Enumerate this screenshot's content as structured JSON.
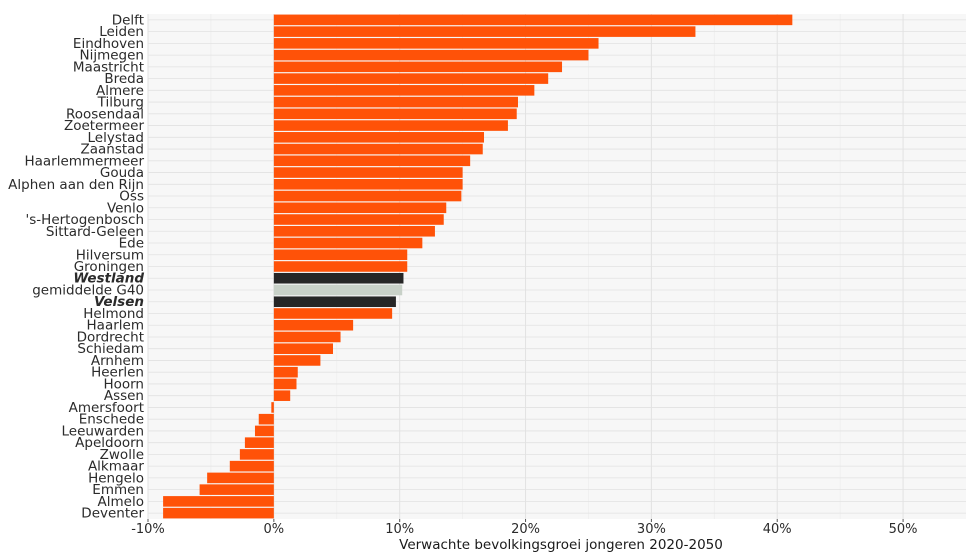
{
  "chart_data": {
    "type": "bar",
    "orientation": "horizontal",
    "title": "",
    "xlabel": "Verwachte bevolkingsgroei jongeren 2020-2050",
    "ylabel": "",
    "xlim": [
      -10,
      55
    ],
    "xticks": [
      -10,
      0,
      10,
      20,
      30,
      40,
      50
    ],
    "xtick_labels": [
      "-10%",
      "0%",
      "10%",
      "20%",
      "30%",
      "40%",
      "50%"
    ],
    "grid": true,
    "legend": "none",
    "colors": {
      "default": "#ff5208",
      "highlight": "#262626",
      "average": "#c8d1c8",
      "panel": "#f7f7f7",
      "grid_major": "#e2e2e2",
      "grid_minor": "#eeeeee"
    },
    "categories": [
      "Delft",
      "Leiden",
      "Eindhoven",
      "Nijmegen",
      "Maastricht",
      "Breda",
      "Almere",
      "Tilburg",
      "Roosendaal",
      "Zoetermeer",
      "Lelystad",
      "Zaanstad",
      "Haarlemmermeer",
      "Gouda",
      "Alphen aan den Rijn",
      "Oss",
      "Venlo",
      "'s-Hertogenbosch",
      "Sittard-Geleen",
      "Ede",
      "Hilversum",
      "Groningen",
      "Westland",
      "gemiddelde G40",
      "Velsen",
      "Helmond",
      "Haarlem",
      "Dordrecht",
      "Schiedam",
      "Arnhem",
      "Heerlen",
      "Hoorn",
      "Assen",
      "Amersfoort",
      "Enschede",
      "Leeuwarden",
      "Apeldoorn",
      "Zwolle",
      "Alkmaar",
      "Hengelo",
      "Emmen",
      "Almelo",
      "Deventer"
    ],
    "values": [
      41.2,
      33.5,
      25.8,
      25.0,
      22.9,
      21.8,
      20.7,
      19.4,
      19.3,
      18.6,
      16.7,
      16.6,
      15.6,
      15.0,
      15.0,
      14.9,
      13.7,
      13.5,
      12.8,
      11.8,
      10.6,
      10.6,
      10.3,
      10.2,
      9.7,
      9.4,
      6.3,
      5.3,
      4.7,
      3.7,
      1.9,
      1.8,
      1.3,
      -0.2,
      -1.2,
      -1.5,
      -2.3,
      -2.7,
      -3.5,
      -5.3,
      -5.9,
      -8.8,
      -8.8
    ],
    "category_styles": [
      "default",
      "default",
      "default",
      "default",
      "default",
      "default",
      "default",
      "default",
      "default",
      "default",
      "default",
      "default",
      "default",
      "default",
      "default",
      "default",
      "default",
      "default",
      "default",
      "default",
      "default",
      "default",
      "highlight",
      "average",
      "highlight",
      "default",
      "default",
      "default",
      "default",
      "default",
      "default",
      "default",
      "default",
      "default",
      "default",
      "default",
      "default",
      "default",
      "default",
      "default",
      "default",
      "default",
      "default"
    ]
  }
}
